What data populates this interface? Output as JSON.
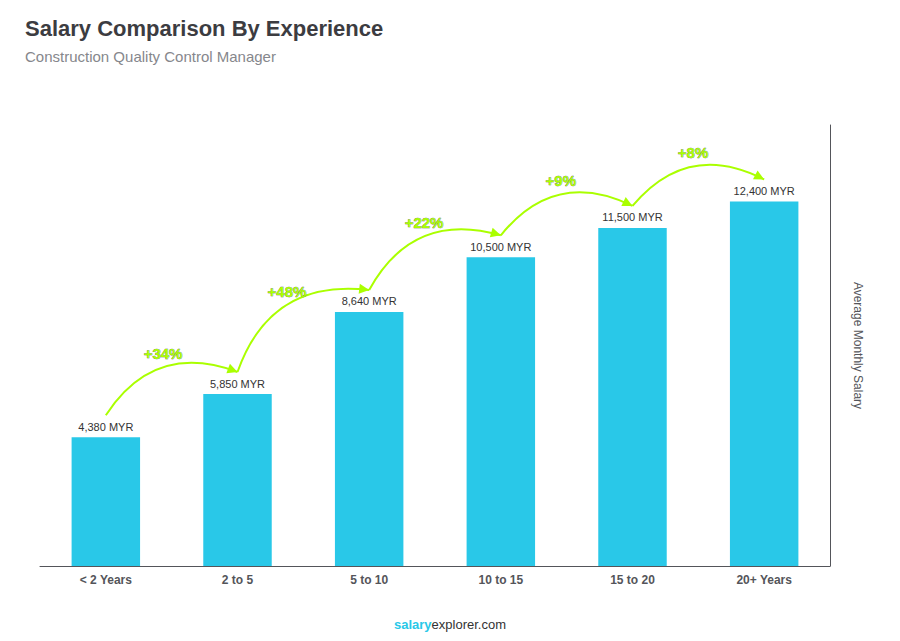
{
  "chart_data": {
    "type": "bar",
    "title": "Salary Comparison By Experience",
    "subtitle": "Construction Quality Control Manager",
    "categories": [
      "< 2 Years",
      "2 to 5",
      "5 to 10",
      "10 to 15",
      "15 to 20",
      "20+ Years"
    ],
    "values": [
      4380,
      5850,
      8640,
      10500,
      11500,
      12400
    ],
    "value_labels": [
      "4,380 MYR",
      "5,850 MYR",
      "8,640 MYR",
      "10,500 MYR",
      "11,500 MYR",
      "12,400 MYR"
    ],
    "data_labels": true,
    "color": "#29c8e8",
    "ylabel": "Average Monthly Salary",
    "ylim": [
      0,
      15000
    ],
    "tick_labels": "x",
    "grid": false,
    "annotations": [
      {
        "text": "+34%",
        "from": "< 2 Years",
        "to": "2 to 5",
        "color": "#aaff00"
      },
      {
        "text": "+48%",
        "from": "2 to 5",
        "to": "5 to 10",
        "color": "#aaff00"
      },
      {
        "text": "+22%",
        "from": "5 to 10",
        "to": "10 to 15",
        "color": "#aaff00"
      },
      {
        "text": "+9%",
        "from": "10 to 15",
        "to": "15 to 20",
        "color": "#aaff00"
      },
      {
        "text": "+8%",
        "from": "15 to 20",
        "to": "20+ Years",
        "color": "#aaff00"
      }
    ],
    "footer": [
      {
        "text": "salary",
        "color": "#29c8e8"
      },
      {
        "text": "explorer.com"
      }
    ]
  }
}
